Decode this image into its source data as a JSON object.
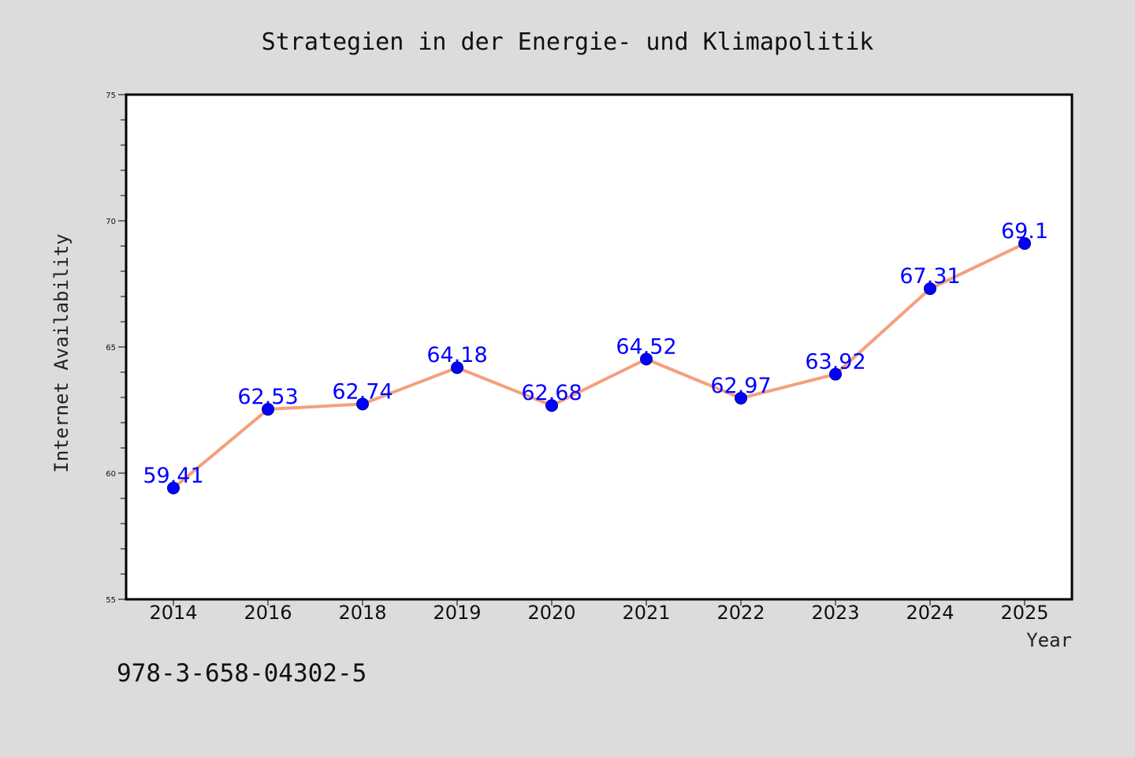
{
  "chart_data": {
    "type": "line",
    "title": "Strategien in der Energie- und Klimapolitik",
    "xlabel": "Year",
    "ylabel": "Internet Availability",
    "categories": [
      "2014",
      "2016",
      "2018",
      "2019",
      "2020",
      "2021",
      "2022",
      "2023",
      "2024",
      "2025"
    ],
    "series": [
      {
        "values": [
          59.41,
          62.53,
          62.74,
          64.18,
          62.68,
          64.52,
          62.97,
          63.92,
          67.31,
          69.1
        ],
        "data_labels": [
          "59.41",
          "62.53",
          "62.74",
          "64.18",
          "62.68",
          "64.52",
          "62.97",
          "63.92",
          "67.31",
          "69.1"
        ]
      }
    ],
    "ylim": [
      55,
      75
    ],
    "yticks": [
      "55",
      "60",
      "65",
      "70",
      "75"
    ],
    "grid": false,
    "legend": "none",
    "colors": {
      "line": "#f4a07e",
      "marker": "#0000ff",
      "label": "#0000ff",
      "plot_background": "#ffffff",
      "page_background": "#dcdcdc"
    }
  },
  "annotation": {
    "isbn": "978-3-658-04302-5"
  }
}
